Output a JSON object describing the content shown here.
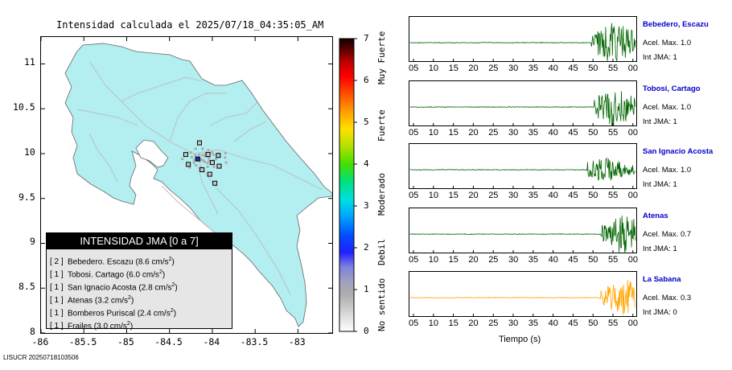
{
  "title": "Intensidad calculada el 2025/07/18_04:35:05_AM",
  "footer": "LISUCR 20250718103506",
  "map": {
    "lon_ticks": [
      "-86",
      "-85.5",
      "-85",
      "-84.5",
      "-84",
      "-83.5",
      "-83"
    ],
    "lon_values": [
      -86,
      -85.5,
      -85,
      -84.5,
      -84,
      -83.5,
      -83
    ],
    "lat_ticks": [
      "8",
      "8.5",
      "9",
      "9.5",
      "10",
      "10.5",
      "11"
    ],
    "lat_values": [
      8,
      8.5,
      9,
      9.5,
      10,
      10.5,
      11
    ],
    "lon_range": [
      -86,
      -82.6
    ],
    "lat_range": [
      8,
      11.3
    ],
    "land_color": "#b3eef0",
    "stations": [
      {
        "lon": -84.17,
        "lat": 9.94,
        "intensity": 2
      },
      {
        "lon": -83.92,
        "lat": 9.86,
        "intensity": 1
      },
      {
        "lon": -84.15,
        "lat": 10.12,
        "intensity": 1
      },
      {
        "lon": -84.05,
        "lat": 9.99,
        "intensity": 1
      },
      {
        "lon": -84.31,
        "lat": 9.99,
        "intensity": 1
      },
      {
        "lon": -84.0,
        "lat": 9.9,
        "intensity": 1
      },
      {
        "lon": -84.12,
        "lat": 9.82,
        "intensity": 1
      },
      {
        "lon": -84.03,
        "lat": 9.77,
        "intensity": 1
      },
      {
        "lon": -83.97,
        "lat": 9.67,
        "intensity": 1
      },
      {
        "lon": -84.28,
        "lat": 9.88,
        "intensity": 1
      },
      {
        "lon": -83.93,
        "lat": 9.98,
        "intensity": 1
      }
    ]
  },
  "legend": {
    "header": "INTENSIDAD JMA [0 a 7]",
    "rows": [
      {
        "level": "[ 2 ]",
        "text": "Bebedero. Escazu (8.6 cm/s",
        "sup": "2",
        "close": ")"
      },
      {
        "level": "[ 1 ]",
        "text": "Tobosi. Cartago (6.0 cm/s",
        "sup": "2",
        "close": ")"
      },
      {
        "level": "[ 1 ]",
        "text": "San Ignacio Acosta (2.8 cm/s",
        "sup": "2",
        "close": ")"
      },
      {
        "level": "[ 1 ]",
        "text": "Atenas (3.2 cm/s",
        "sup": "2",
        "close": ")"
      },
      {
        "level": "[ 1 ]",
        "text": "Bomberos Puriscal (2.4 cm/s",
        "sup": "2",
        "close": ")"
      },
      {
        "level": "[ 1 ]",
        "text": "Frailes (3.0 cm/s",
        "sup": "2",
        "close": ")"
      }
    ]
  },
  "scale": {
    "ticks": [
      "0",
      "1",
      "2",
      "3",
      "4",
      "5",
      "6",
      "7"
    ],
    "bands": [
      "No sentido",
      "Debil",
      "Moderado",
      "Fuerte",
      "Muy Fuerte"
    ]
  },
  "traces": {
    "time_ticks": [
      "05",
      "10",
      "15",
      "20",
      "25",
      "30",
      "35",
      "40",
      "45",
      "50",
      "55",
      "00"
    ],
    "time_ticks_last": [
      "05",
      "10",
      "15",
      "20",
      "25",
      "30",
      "35",
      "40",
      "45",
      "50",
      "55",
      "00"
    ],
    "xlabel": "Tiempo (s)",
    "items": [
      {
        "name": "Bebedero, Escazu",
        "acel": "Acel. Max. 1.0",
        "jma": "Int JMA: 1",
        "color": "#006400",
        "onset": 0.8,
        "amp": 1.0,
        "peak": 0.9
      },
      {
        "name": "Tobosi, Cartago",
        "acel": "Acel. Max. 1.0",
        "jma": "Int JMA: 1",
        "color": "#006400",
        "onset": 0.81,
        "amp": 0.9,
        "peak": 0.9
      },
      {
        "name": "San Ignacio Acosta",
        "acel": "Acel. Max. 1.0",
        "jma": "Int JMA: 1",
        "color": "#006400",
        "onset": 0.78,
        "amp": 0.55,
        "peak": 0.86
      },
      {
        "name": "Atenas",
        "acel": "Acel. Max. 0.7",
        "jma": "Int JMA: 1",
        "color": "#006400",
        "onset": 0.84,
        "amp": 1.0,
        "peak": 0.95
      },
      {
        "name": "La Sabana",
        "acel": "Acel. Max. 0.3",
        "jma": "Int JMA: 0",
        "color": "#ffa500",
        "onset": 0.84,
        "amp": 0.9,
        "peak": 0.95
      }
    ]
  }
}
